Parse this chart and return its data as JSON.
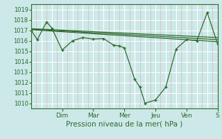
{
  "background_color": "#cce8e8",
  "grid_color": "#ffffff",
  "line_color": "#2d6a2d",
  "marker_color": "#2d6a2d",
  "xlabel": "Pression niveau de la mer( hPa )",
  "ylim": [
    1009.5,
    1019.5
  ],
  "yticks": [
    1010,
    1011,
    1012,
    1013,
    1014,
    1015,
    1016,
    1017,
    1018,
    1019
  ],
  "xlim": [
    0,
    9.0
  ],
  "day_labels": [
    "Dim",
    "Mar",
    "Mer",
    "Jeu",
    "Ven",
    "S"
  ],
  "day_positions": [
    1.5,
    3.0,
    4.5,
    6.0,
    7.5,
    9.0
  ],
  "series_main": {
    "x": [
      0,
      0.3,
      0.75,
      1.0,
      1.5,
      2.0,
      2.5,
      3.0,
      3.5,
      4.0,
      4.25,
      4.5,
      5.0,
      5.25,
      5.5,
      6.0,
      6.5,
      7.0,
      7.5,
      8.0,
      8.5,
      9.0
    ],
    "y": [
      1017.0,
      1016.1,
      1017.8,
      1017.2,
      1015.1,
      1016.0,
      1016.3,
      1016.15,
      1016.2,
      1015.55,
      1015.5,
      1015.3,
      1012.3,
      1011.55,
      1010.0,
      1010.3,
      1011.55,
      1015.2,
      1016.1,
      1016.0,
      1018.7,
      1015.7
    ]
  },
  "series_trend": [
    {
      "x": [
        0,
        9.0
      ],
      "y": [
        1017.05,
        1015.9
      ]
    },
    {
      "x": [
        0,
        9.0
      ],
      "y": [
        1017.1,
        1016.1
      ]
    },
    {
      "x": [
        0,
        9.0
      ],
      "y": [
        1017.15,
        1016.3
      ]
    }
  ],
  "pink_grid_color": "#ddb8b8",
  "white_grid_color": "#ffffff"
}
